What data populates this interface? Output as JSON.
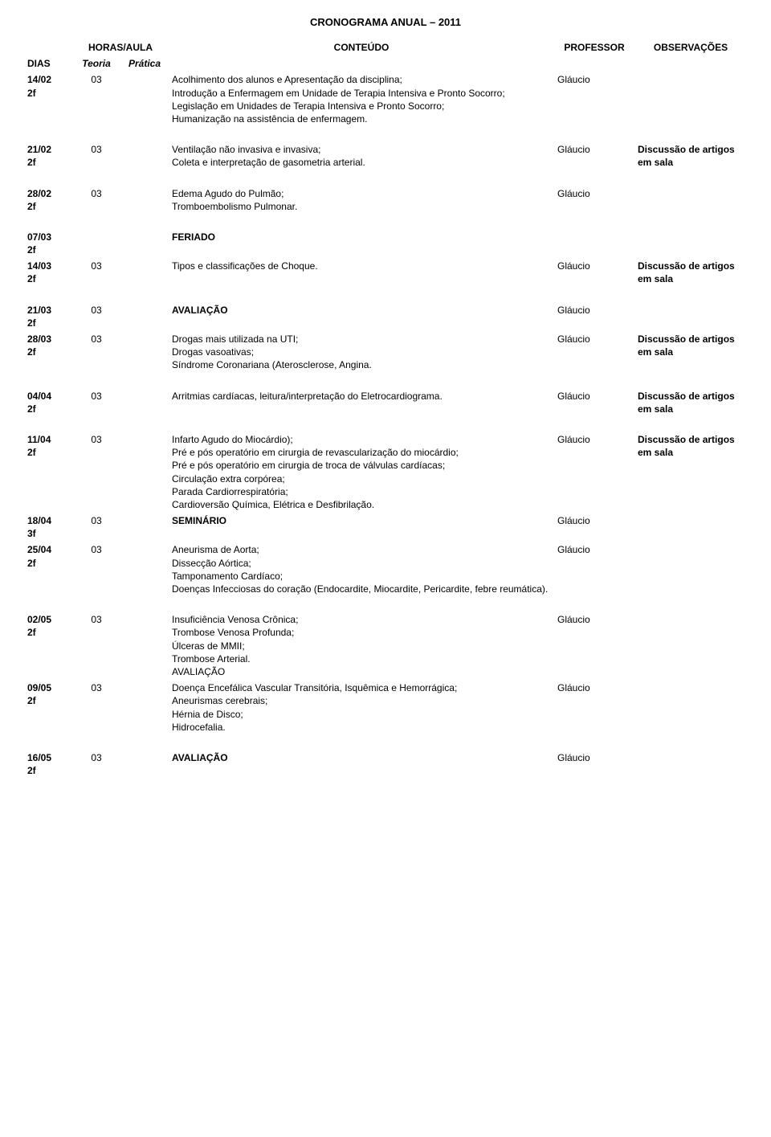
{
  "title": "CRONOGRAMA ANUAL – 2011",
  "headers": {
    "horas_aula": "HORAS/AULA",
    "conteudo": "CONTEÚDO",
    "professor": "PROFESSOR",
    "observacoes": "OBSERVAÇÕES",
    "dias": "DIAS",
    "teoria": "Teoria",
    "pratica": "Prática"
  },
  "rows": [
    {
      "dias": "14/02\n2f",
      "teoria": "03",
      "pratica": "",
      "conteudo": "Acolhimento dos alunos e Apresentação da disciplina;\nIntrodução a Enfermagem em Unidade de Terapia Intensiva e Pronto Socorro;\nLegislação em Unidades de Terapia Intensiva e Pronto Socorro;\nHumanização na assistência de enfermagem.",
      "professor": "Gláucio",
      "observacoes": ""
    },
    {
      "dias": "21/02\n2f",
      "teoria": "03",
      "pratica": "",
      "conteudo": "Ventilação não invasiva e invasiva;\nColeta e interpretação de gasometria arterial.",
      "professor": "Gláucio",
      "observacoes": "Discussão de artigos em sala"
    },
    {
      "dias": "28/02\n2f",
      "teoria": "03",
      "pratica": "",
      "conteudo": "Edema Agudo do Pulmão;\nTromboembolismo Pulmonar.",
      "professor": "Gláucio",
      "observacoes": ""
    },
    {
      "dias": "07/03\n2f",
      "teoria": "",
      "pratica": "",
      "conteudo": "FERIADO",
      "professor": "",
      "observacoes": ""
    },
    {
      "dias": "14/03\n2f",
      "teoria": "03",
      "pratica": "",
      "conteudo": "Tipos e classificações de Choque.",
      "professor": "Gláucio",
      "observacoes": "Discussão de artigos em sala"
    },
    {
      "dias": "21/03\n2f",
      "teoria": "03",
      "pratica": "",
      "conteudo": "AVALIAÇÃO",
      "professor": "Gláucio",
      "observacoes": ""
    },
    {
      "dias": "28/03\n2f",
      "teoria": "03",
      "pratica": "",
      "conteudo": "Drogas mais utilizada na UTI;\nDrogas vasoativas;\nSíndrome Coronariana (Aterosclerose, Angina.",
      "professor": "Gláucio",
      "observacoes": "Discussão de artigos em sala"
    },
    {
      "dias": "04/04\n2f",
      "teoria": "03",
      "pratica": "",
      "conteudo": "Arritmias cardíacas, leitura/interpretação do Eletrocardiograma.",
      "professor": "Gláucio",
      "observacoes": "Discussão de artigos em sala"
    },
    {
      "dias": "11/04\n2f",
      "teoria": "03",
      "pratica": "",
      "conteudo": "Infarto Agudo do Miocárdio);\nPré e pós operatório em cirurgia de revascularização do miocárdio;\nPré e pós operatório em cirurgia de troca de válvulas cardíacas;\nCirculação extra corpórea;\nParada Cardiorrespiratória;\nCardioversão Química, Elétrica e Desfibrilação.",
      "professor": "Gláucio",
      "observacoes": "Discussão de artigos em sala"
    },
    {
      "dias": "18/04\n3f",
      "teoria": "03",
      "pratica": "",
      "conteudo": "SEMINÁRIO",
      "professor": "Gláucio",
      "observacoes": ""
    },
    {
      "dias": "25/04\n2f",
      "teoria": "03",
      "pratica": "",
      "conteudo": "Aneurisma de Aorta;\nDissecção Aórtica;\nTamponamento Cardíaco;\nDoenças Infecciosas do coração (Endocardite, Miocardite, Pericardite, febre reumática).",
      "professor": "Gláucio",
      "observacoes": ""
    },
    {
      "dias": "02/05\n2f",
      "teoria": "03",
      "pratica": "",
      "conteudo": "Insuficiência Venosa Crônica;\nTrombose Venosa Profunda;\nÚlceras de MMII;\nTrombose Arterial.\nAVALIAÇÃO",
      "professor": "Gláucio",
      "observacoes": ""
    },
    {
      "dias": "09/05\n2f",
      "teoria": "03",
      "pratica": "",
      "conteudo": "Doença Encefálica Vascular Transitória, Isquêmica e Hemorrágica;\nAneurismas cerebrais;\nHérnia de Disco;\nHidrocefalia.",
      "professor": "Gláucio",
      "observacoes": ""
    },
    {
      "dias": "16/05\n2f",
      "teoria": "03",
      "pratica": "",
      "conteudo": "AVALIAÇÃO",
      "professor": "Gláucio",
      "observacoes": ""
    }
  ],
  "spacer_after": [
    0,
    1,
    2,
    4,
    6,
    7,
    10,
    12
  ]
}
